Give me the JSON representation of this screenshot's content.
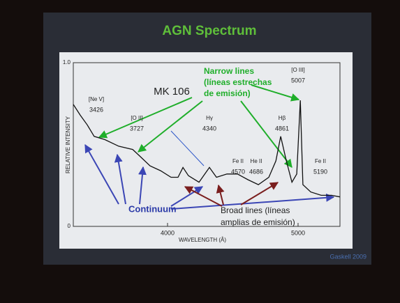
{
  "chart_data": {
    "type": "line",
    "title": "AGN Spectrum",
    "object_label": "MK 106",
    "x_label": "WAVELENGTH (Å)",
    "y_label": "RELATIVE INTENSITY",
    "credit": "Gaskell 2009",
    "x": [
      3278,
      3331,
      3385,
      3438,
      3519,
      3626,
      3733,
      3786,
      3866,
      3947,
      4027,
      4080,
      4118,
      4160,
      4241,
      4321,
      4375,
      4455,
      4536,
      4616,
      4696,
      4776,
      4830,
      4867,
      4910,
      4953,
      4990,
      5017,
      5037,
      5097,
      5177,
      5257,
      5321
    ],
    "values": [
      0.745,
      0.68,
      0.62,
      0.55,
      0.53,
      0.49,
      0.47,
      0.43,
      0.37,
      0.34,
      0.3,
      0.3,
      0.36,
      0.31,
      0.27,
      0.36,
      0.3,
      0.32,
      0.32,
      0.285,
      0.255,
      0.3,
      0.4,
      0.55,
      0.4,
      0.27,
      0.32,
      0.77,
      0.255,
      0.21,
      0.19,
      0.19,
      0.18
    ],
    "color": "#111111",
    "xlim": [
      3278,
      5321
    ],
    "ylim": [
      0,
      1
    ],
    "xticks": [
      4000,
      5000
    ],
    "yticks": [
      0,
      {
        "value": 1,
        "label": "1.0"
      }
    ],
    "line_labels": [
      {
        "name": "[Ne V]",
        "wavelength": 3426
      },
      {
        "name": "[O II]",
        "wavelength": 3727
      },
      {
        "name": "Hγ",
        "wavelength": 4340
      },
      {
        "name": "Fe II",
        "wavelength": 4570
      },
      {
        "name": "He II",
        "wavelength": 4686
      },
      {
        "name": "Hβ",
        "wavelength": 4861
      },
      {
        "name": "[O III]",
        "wavelength": 5007
      },
      {
        "name": "Fe II",
        "wavelength": 5190
      }
    ],
    "narrow_label": [
      "Narrow lines",
      "(líneas estrechas",
      "de emisión)"
    ],
    "continuum_label": "Continuum",
    "broad_label": [
      "Broad lines (líneas",
      "amplias de emisión)"
    ]
  }
}
